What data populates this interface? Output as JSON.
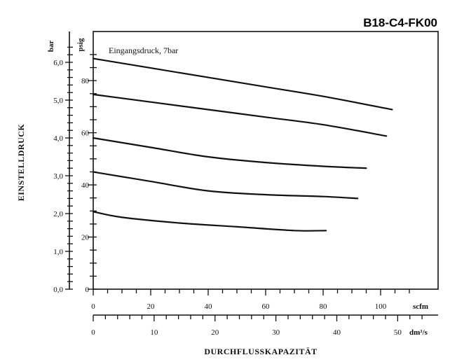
{
  "header": {
    "model_code": "B18-C4-FK00"
  },
  "chart_data": {
    "type": "line",
    "annotation": "Eingangsdruck, 7bar",
    "ylabel": "EINSTELLDRUCK",
    "xlabel": "DURCHFLUSSKAPAZITÄT",
    "y_bar": {
      "unit": "bar",
      "ticks": [
        "0,0",
        "1,0",
        "2,0",
        "3,0",
        "4,0",
        "5,0",
        "6,0"
      ],
      "range": [
        0,
        6.6
      ]
    },
    "y_psig": {
      "unit": "psig",
      "ticks": [
        "0",
        "20",
        "40",
        "60",
        "80"
      ]
    },
    "x_scfm": {
      "unit": "scfm",
      "ticks": [
        "0",
        "20",
        "40",
        "60",
        "80",
        "100"
      ],
      "range": [
        0,
        120
      ]
    },
    "x_dm3s": {
      "unit": "dm³/s",
      "ticks": [
        "0",
        "10",
        "20",
        "30",
        "40",
        "50"
      ]
    },
    "series": [
      {
        "points": [
          [
            0,
            6.1
          ],
          [
            20,
            5.85
          ],
          [
            40,
            5.6
          ],
          [
            60,
            5.35
          ],
          [
            80,
            5.1
          ],
          [
            104,
            4.75
          ]
        ]
      },
      {
        "points": [
          [
            0,
            5.15
          ],
          [
            20,
            4.95
          ],
          [
            40,
            4.75
          ],
          [
            60,
            4.55
          ],
          [
            80,
            4.35
          ],
          [
            102,
            4.05
          ]
        ]
      },
      {
        "points": [
          [
            0,
            4.0
          ],
          [
            20,
            3.75
          ],
          [
            40,
            3.5
          ],
          [
            60,
            3.35
          ],
          [
            80,
            3.25
          ],
          [
            95,
            3.2
          ]
        ]
      },
      {
        "points": [
          [
            0,
            3.1
          ],
          [
            20,
            2.85
          ],
          [
            40,
            2.6
          ],
          [
            60,
            2.5
          ],
          [
            80,
            2.45
          ],
          [
            92,
            2.4
          ]
        ]
      },
      {
        "points": [
          [
            0,
            2.05
          ],
          [
            10,
            1.9
          ],
          [
            30,
            1.75
          ],
          [
            50,
            1.65
          ],
          [
            70,
            1.55
          ],
          [
            81,
            1.55
          ]
        ]
      }
    ]
  }
}
